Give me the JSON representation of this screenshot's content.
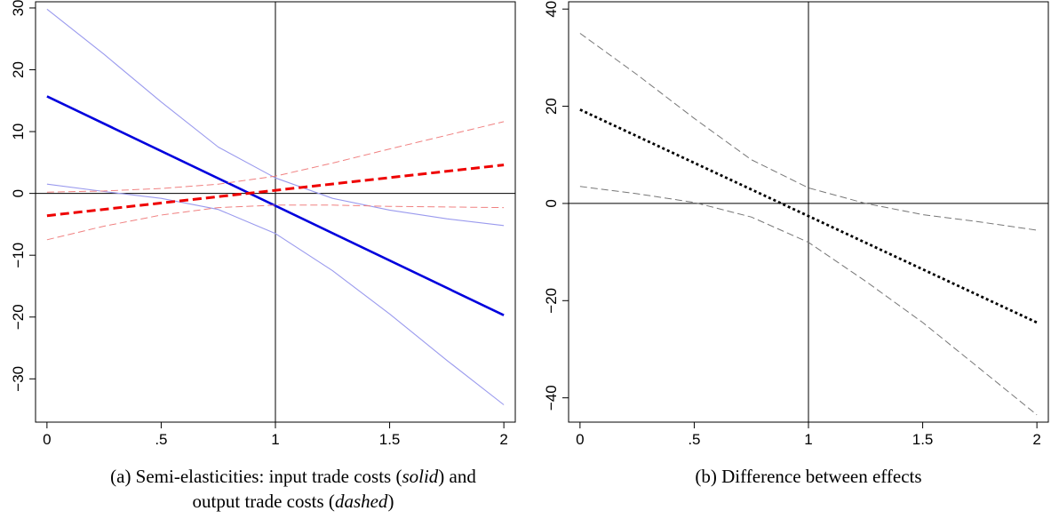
{
  "captions": {
    "a": {
      "prefix": "(a) Semi-elasticities: input trade costs (",
      "solid_word": "solid",
      "middle": ") and",
      "line2_prefix": "output trade costs (",
      "dashed_word": "dashed",
      "suffix": ")"
    },
    "b": {
      "text": "(b) Difference between effects"
    }
  },
  "chart_data": [
    {
      "type": "line",
      "title": "",
      "xlabel": "",
      "ylabel": "",
      "xlim": [
        -0.05,
        2.05
      ],
      "ylim": [
        -37,
        31
      ],
      "xticks": [
        0,
        0.5,
        1,
        1.5,
        2
      ],
      "xtick_labels": [
        "0",
        ".5",
        "1",
        "1.5",
        "2"
      ],
      "yticks": [
        -30,
        -20,
        -10,
        0,
        10,
        20,
        30
      ],
      "ytick_labels": [
        "−30",
        "−20",
        "−10",
        "0",
        "10",
        "20",
        "30"
      ],
      "reference_lines": {
        "x": 1,
        "y": 0
      },
      "grid": false,
      "legend": "none",
      "series": [
        {
          "style": "solid-thick",
          "color": "#0000dd",
          "x": [
            0,
            2
          ],
          "y": [
            15.7,
            -19.7
          ]
        },
        {
          "style": "solid-thin",
          "color": "#9a9aee",
          "x": [
            0,
            0.25,
            0.5,
            0.75,
            1,
            1.25,
            1.5,
            1.75,
            2
          ],
          "y": [
            29.8,
            22.5,
            14.8,
            7.5,
            2.5,
            -0.8,
            -2.7,
            -4.1,
            -5.2
          ]
        },
        {
          "style": "solid-thin",
          "color": "#9a9aee",
          "x": [
            0,
            0.25,
            0.5,
            0.75,
            1,
            1.25,
            1.5,
            1.75,
            2
          ],
          "y": [
            1.5,
            0.3,
            -0.8,
            -2.6,
            -6.5,
            -12.5,
            -19.5,
            -27.0,
            -34.2
          ]
        },
        {
          "style": "dashed-thick",
          "color": "#ee0000",
          "x": [
            0,
            2
          ],
          "y": [
            -3.6,
            4.6
          ]
        },
        {
          "style": "dashed-thin",
          "color": "#f08080",
          "x": [
            0,
            0.25,
            0.5,
            0.75,
            1,
            1.25,
            1.5,
            1.75,
            2
          ],
          "y": [
            0.2,
            0.4,
            0.8,
            1.5,
            2.8,
            4.9,
            7.2,
            9.4,
            11.6
          ]
        },
        {
          "style": "dashed-thin",
          "color": "#f08080",
          "x": [
            0,
            0.25,
            0.5,
            0.75,
            1,
            1.25,
            1.5,
            1.75,
            2
          ],
          "y": [
            -7.5,
            -5.3,
            -3.5,
            -2.3,
            -1.9,
            -1.9,
            -2.1,
            -2.2,
            -2.3
          ]
        }
      ]
    },
    {
      "type": "line",
      "title": "",
      "xlabel": "",
      "ylabel": "",
      "xlim": [
        -0.05,
        2.05
      ],
      "ylim": [
        -45,
        41.5
      ],
      "xticks": [
        0,
        0.5,
        1,
        1.5,
        2
      ],
      "xtick_labels": [
        "0",
        ".5",
        "1",
        "1.5",
        "2"
      ],
      "yticks": [
        -40,
        -20,
        0,
        20,
        40
      ],
      "ytick_labels": [
        "−40",
        "−20",
        "0",
        "20",
        "40"
      ],
      "reference_lines": {
        "x": 1,
        "y": 0
      },
      "grid": false,
      "legend": "none",
      "series": [
        {
          "style": "dotted-thick",
          "color": "#000000",
          "x": [
            0,
            2
          ],
          "y": [
            19.3,
            -24.5
          ]
        },
        {
          "style": "dashed-thin",
          "color": "#777777",
          "x": [
            0,
            0.25,
            0.5,
            0.75,
            1,
            1.25,
            1.5,
            1.75,
            2
          ],
          "y": [
            35.0,
            26.5,
            17.5,
            9.0,
            3.2,
            0,
            -2.3,
            -3.8,
            -5.5
          ]
        },
        {
          "style": "dashed-thin",
          "color": "#777777",
          "x": [
            0,
            0.25,
            0.5,
            0.75,
            1,
            1.25,
            1.5,
            1.75,
            2
          ],
          "y": [
            3.5,
            2.0,
            0.2,
            -2.8,
            -8.0,
            -16.0,
            -24.5,
            -34.0,
            -43.5
          ]
        }
      ]
    }
  ]
}
